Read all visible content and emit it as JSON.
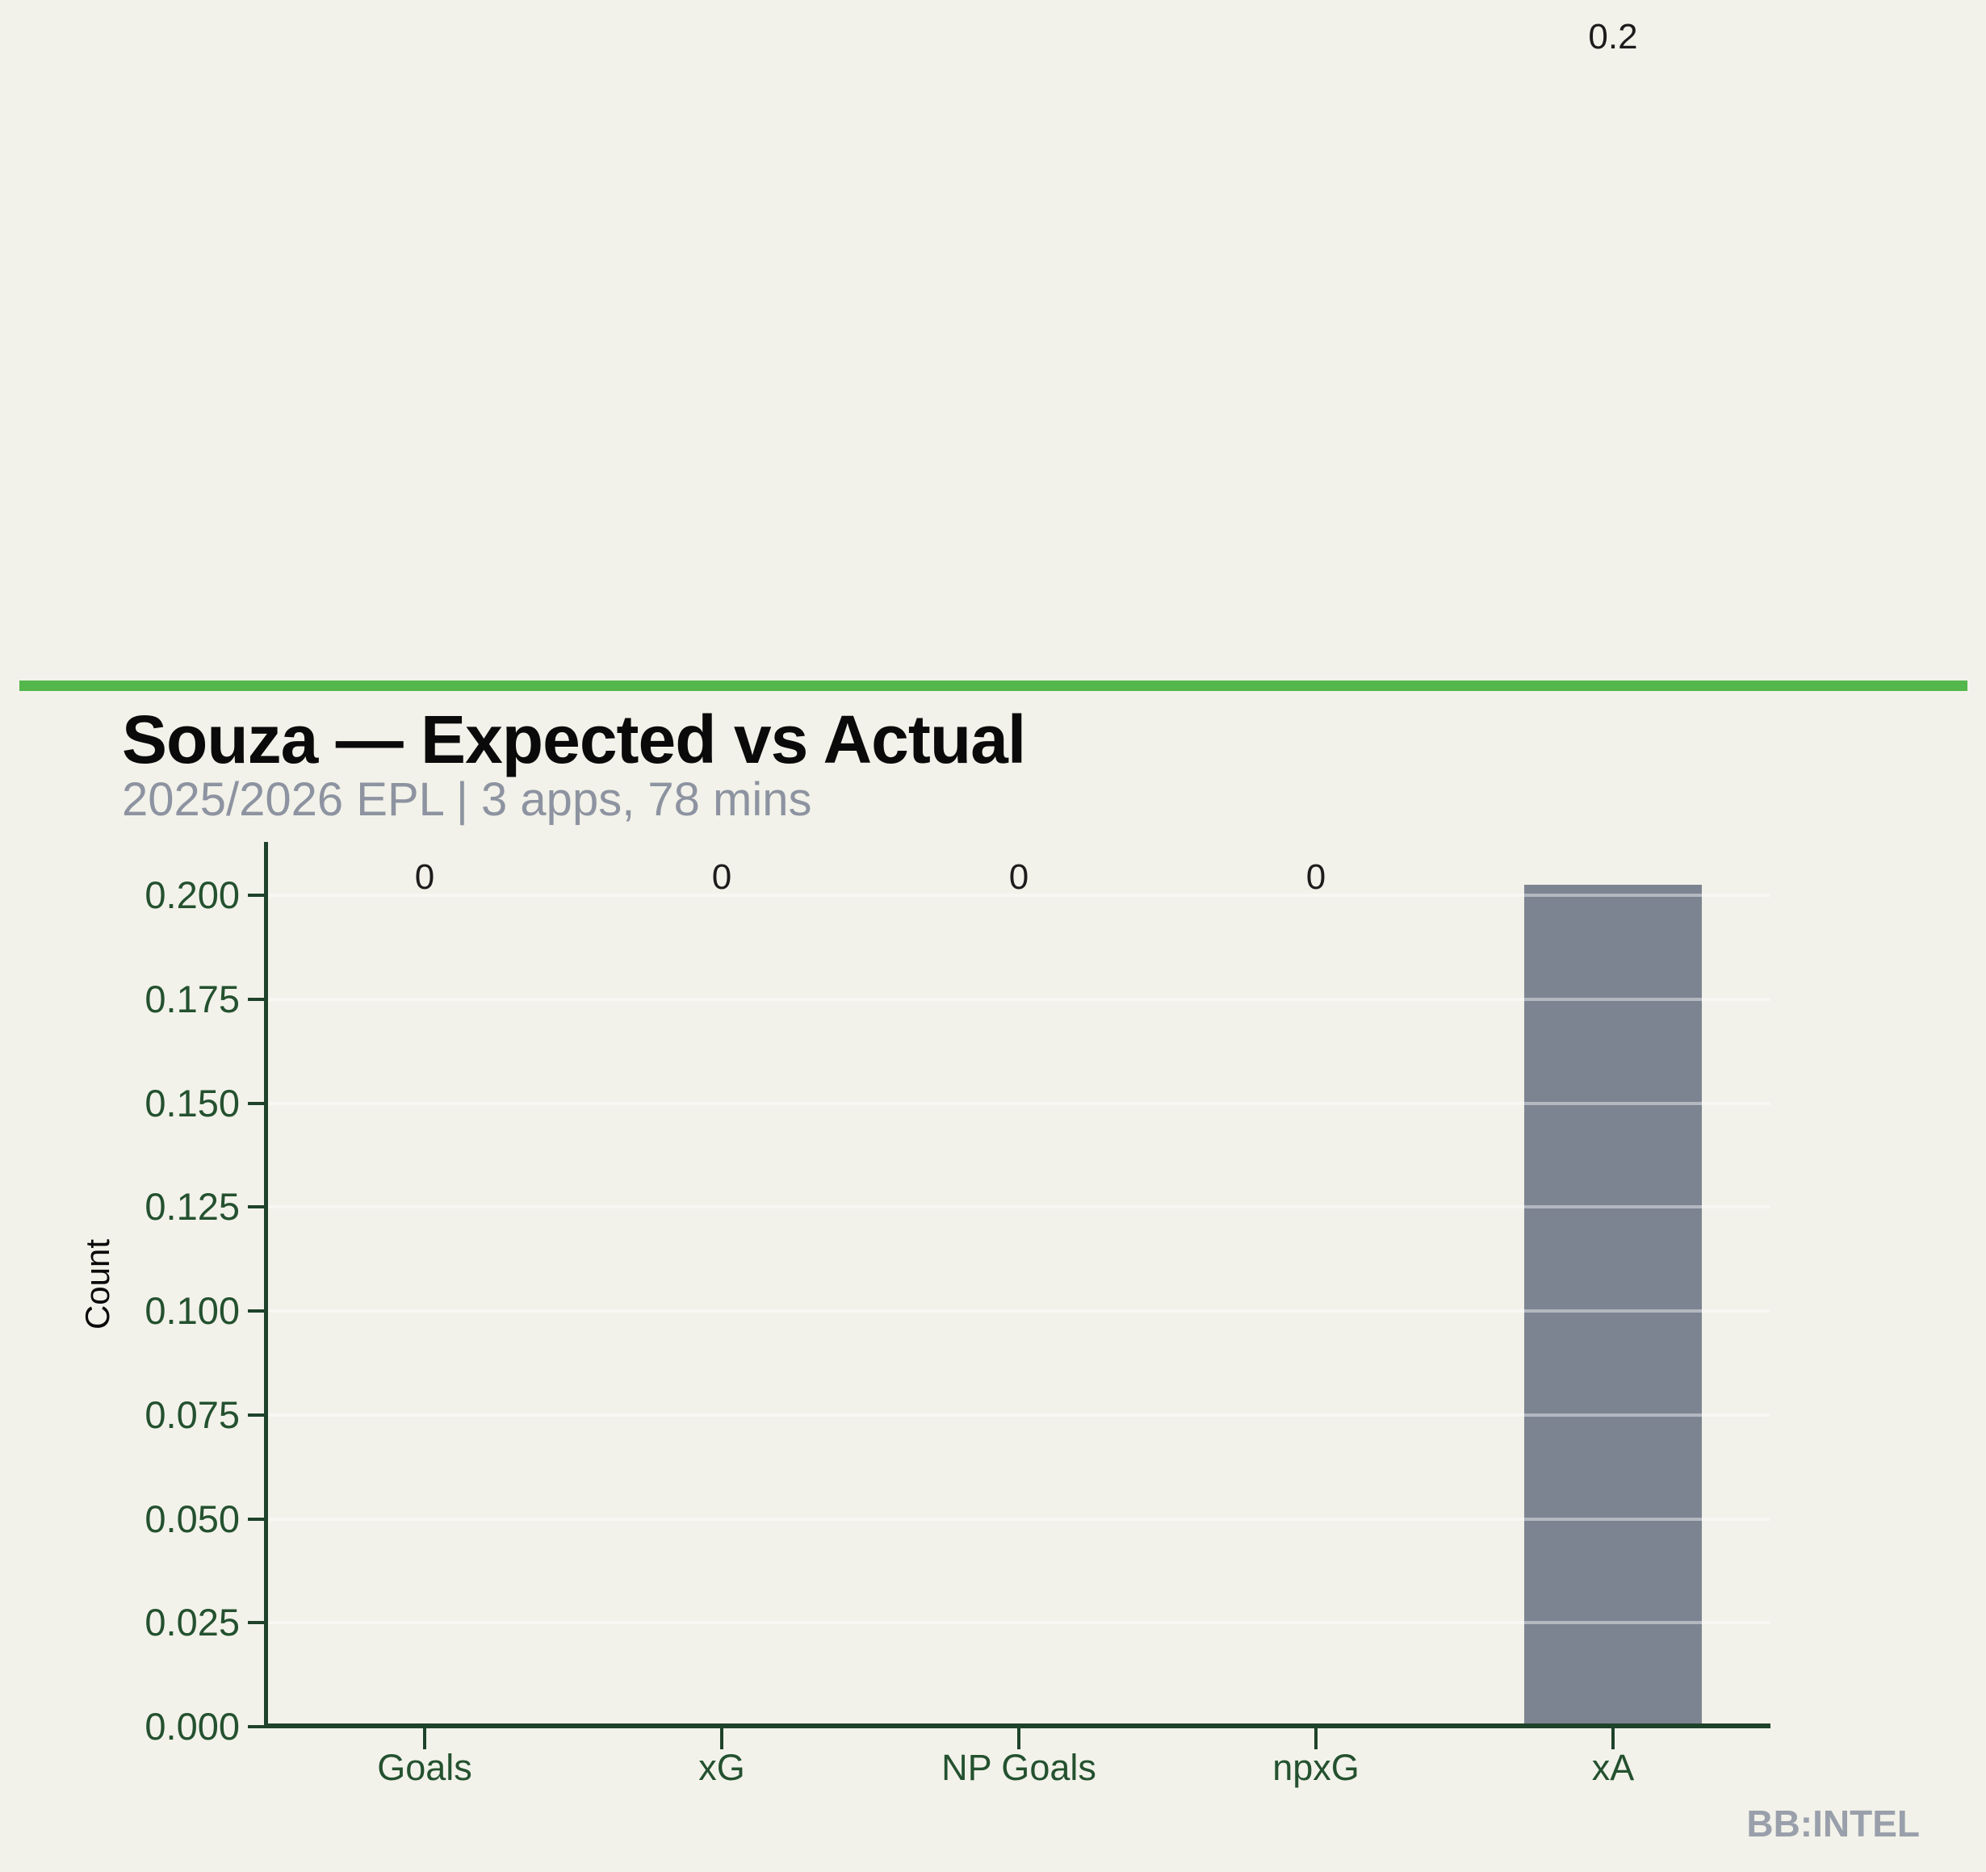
{
  "page": {
    "background_color": "#f2f2ea",
    "accent_color": "#54b74b",
    "text_color": "#0a0a0a",
    "subtitle_color": "#8d93a0",
    "axis_color": "#1e432a",
    "tick_label_color": "#24512f",
    "bar_color": "#7d8491",
    "bar_label_color": "#1c1c1c",
    "watermark_color": "#9aa0ab"
  },
  "header": {
    "title": "Souza — Expected vs Actual",
    "subtitle": "2025/2026 EPL | 3 apps, 78 mins"
  },
  "footer": {
    "watermark": "BB:INTEL"
  },
  "chart_data": {
    "type": "bar",
    "title": "Souza — Expected vs Actual",
    "subtitle": "2025/2026 EPL | 3 apps, 78 mins",
    "categories": [
      "Goals",
      "xG",
      "NP Goals",
      "npxG",
      "xA"
    ],
    "values": [
      0,
      0,
      0,
      0,
      0.2
    ],
    "bar_value_labels": [
      "0",
      "0",
      "0",
      "0",
      "0.2"
    ],
    "xlabel": "",
    "ylabel": "Count",
    "ylim": [
      0,
      0.213
    ],
    "yticks": [
      0,
      0.025,
      0.05,
      0.075,
      0.1,
      0.125,
      0.15,
      0.175,
      0.2
    ],
    "ytick_labels": [
      "0.000",
      "0.025",
      "0.050",
      "0.075",
      "0.100",
      "0.125",
      "0.150",
      "0.175",
      "0.200"
    ],
    "grid": "horizontal",
    "legend": "none",
    "bar_color": "#7d8491"
  }
}
